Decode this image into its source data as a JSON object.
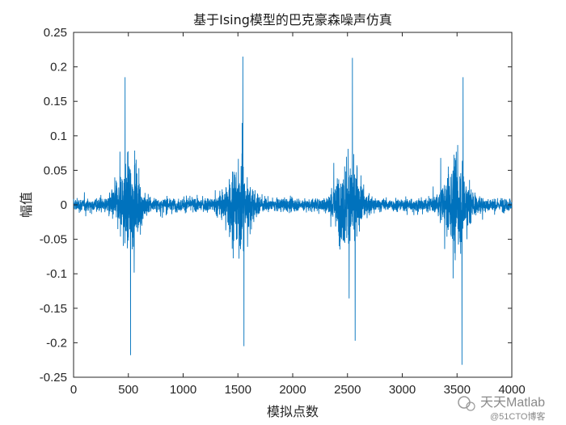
{
  "chart_data": {
    "type": "line",
    "title": "基于Ising模型的巴克豪森噪声仿真",
    "xlabel": "模拟点数",
    "ylabel": "幅值",
    "xlim": [
      0,
      4000
    ],
    "ylim": [
      -0.25,
      0.25
    ],
    "xticks": [
      0,
      500,
      1000,
      1500,
      2000,
      2500,
      3000,
      3500,
      4000
    ],
    "yticks": [
      0.25,
      0.2,
      0.15,
      0.1,
      0.05,
      0,
      -0.05,
      -0.1,
      -0.15,
      -0.2,
      -0.25
    ],
    "grid": false,
    "legend": "none",
    "n_points": 4000,
    "series": [
      {
        "color": "#0072BD",
        "burst_centers": [
          500,
          1500,
          2500,
          3500
        ],
        "burst_peaks": [
          {
            "x": 470,
            "y": 0.185
          },
          {
            "x": 520,
            "y": -0.218
          },
          {
            "x": 1545,
            "y": 0.215
          },
          {
            "x": 1555,
            "y": -0.205
          },
          {
            "x": 2545,
            "y": 0.213
          },
          {
            "x": 2570,
            "y": -0.197
          },
          {
            "x": 3555,
            "y": 0.185
          },
          {
            "x": 3545,
            "y": -0.232
          }
        ],
        "baseline_amplitude": 0.02,
        "burst_amplitude": 0.12
      }
    ]
  },
  "watermark": {
    "line1": "天天Matlab",
    "line2": "@51CTO博客"
  }
}
